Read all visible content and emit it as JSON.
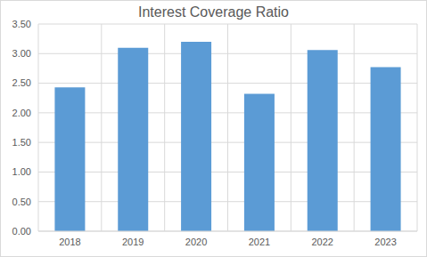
{
  "chart_data": {
    "type": "bar",
    "title": "Interest Coverage Ratio",
    "categories": [
      "2018",
      "2019",
      "2020",
      "2021",
      "2022",
      "2023"
    ],
    "values": [
      2.43,
      3.1,
      3.2,
      2.32,
      3.06,
      2.77
    ],
    "color": "#5b9bd5",
    "ylim": [
      0,
      3.5
    ],
    "yticks": [
      {
        "value": 0,
        "label": "0.00"
      },
      {
        "value": 0.5,
        "label": "0.50"
      },
      {
        "value": 1,
        "label": "1.00"
      },
      {
        "value": 1.5,
        "label": "1.50"
      },
      {
        "value": 2,
        "label": "2.00"
      },
      {
        "value": 2.5,
        "label": "2.50"
      },
      {
        "value": 3,
        "label": "3.00"
      },
      {
        "value": 3.5,
        "label": "3.50"
      }
    ],
    "grid": true
  }
}
